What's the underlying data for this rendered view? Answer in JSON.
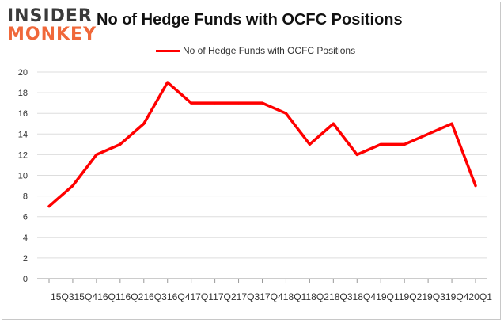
{
  "title": "No of Hedge Funds with OCFC Positions",
  "logo": {
    "line1": "INSIDER",
    "line2": "MONKEY"
  },
  "colors": {
    "series": "#ff0000",
    "grid": "#dddddd",
    "logo_accent": "#f0683a"
  },
  "chart_data": {
    "type": "line",
    "title": "No of Hedge Funds with OCFC Positions",
    "xlabel": "",
    "ylabel": "",
    "ylim": [
      0,
      20
    ],
    "yticks": [
      0,
      2,
      4,
      6,
      8,
      10,
      12,
      14,
      16,
      18,
      20
    ],
    "grid": true,
    "legend_position": "top-center",
    "categories": [
      "2015Q3",
      "2015Q4",
      "2016Q1",
      "2016Q2",
      "2016Q3",
      "2016Q4",
      "2017Q1",
      "2017Q2",
      "2017Q3",
      "2017Q4",
      "2018Q1",
      "2018Q2",
      "2018Q3",
      "2018Q4",
      "2019Q1",
      "2019Q2",
      "2019Q3",
      "2019Q4",
      "2020Q1"
    ],
    "tick_labels": [
      "15Q3",
      "15Q4",
      "16Q1",
      "16Q2",
      "16Q3",
      "16Q4",
      "17Q1",
      "17Q2",
      "17Q3",
      "17Q4",
      "18Q1",
      "18Q2",
      "18Q3",
      "18Q4",
      "19Q1",
      "19Q2",
      "19Q3",
      "19Q4",
      "20Q1"
    ],
    "series": [
      {
        "name": "No of Hedge Funds with OCFC Positions",
        "values": [
          7,
          9,
          12,
          13,
          15,
          19,
          17,
          17,
          17,
          17,
          16,
          13,
          15,
          12,
          13,
          13,
          14,
          15,
          9
        ]
      }
    ],
    "axis_tick_text": "15Q315Q416Q116Q216Q316Q417Q117Q217Q317Q418Q118Q218Q318Q419Q119Q219Q319Q420Q1"
  }
}
